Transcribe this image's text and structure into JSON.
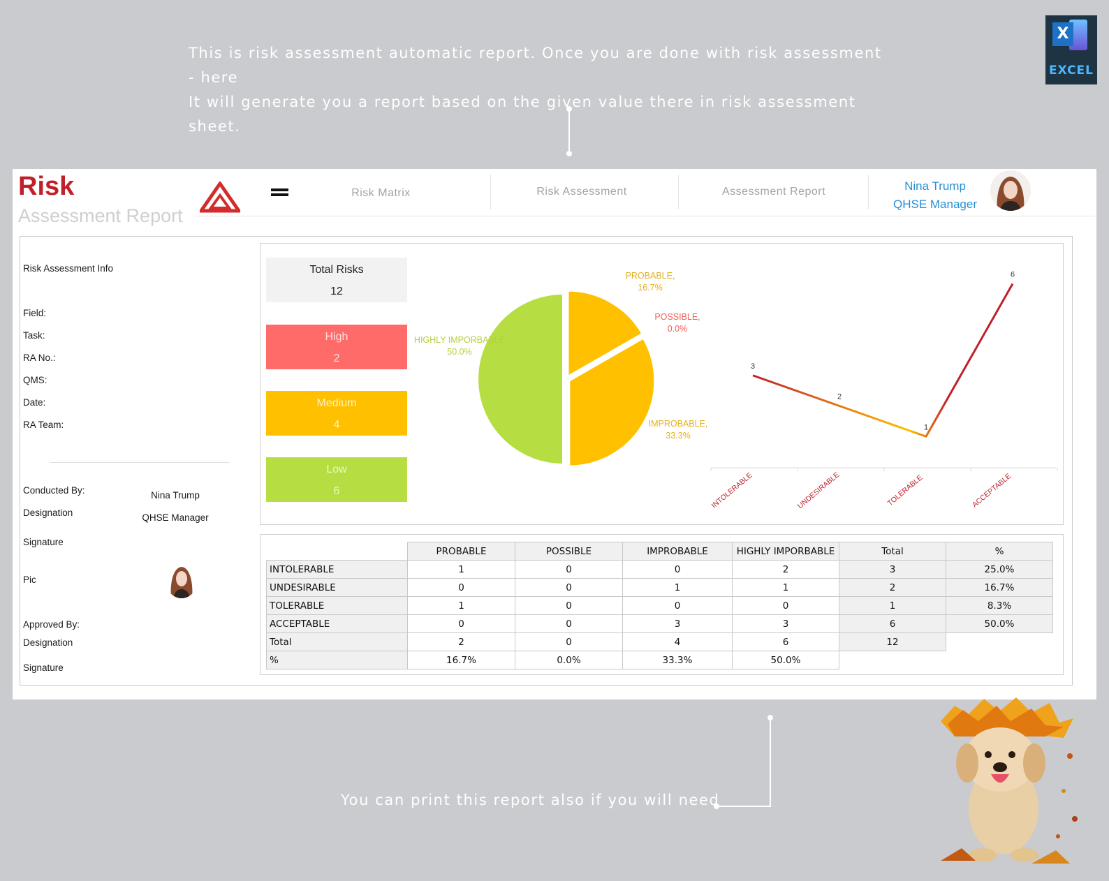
{
  "captions": {
    "top_line1": "This is risk assessment automatic report. Once you are done with risk assessment - here",
    "top_line2": "It will generate you a report based on the given value there in risk assessment sheet.",
    "bottom": "You can print this report also if you will need"
  },
  "excel_badge": {
    "letter": "X",
    "label": "EXCEL",
    "icon": "excel-icon"
  },
  "header": {
    "title": "Risk",
    "subtitle": "Assessment Report",
    "logo_icon": "triangle-logo-icon",
    "menu_icon": "hamburger-menu-icon",
    "nav": [
      "Risk Matrix",
      "Risk Assessment",
      "Assessment Report"
    ],
    "user": {
      "name": "Nina Trump",
      "role": "QHSE Manager"
    }
  },
  "info": {
    "heading": "Risk Assessment Info",
    "fields": [
      "Field:",
      "Task:",
      "RA No.:",
      "QMS:",
      "Date:",
      "RA Team:"
    ],
    "conducted_by_label": "Conducted By:",
    "conducted_by_value": "Nina Trump",
    "designation_label": "Designation",
    "designation_value": "QHSE Manager",
    "signature_label": "Signature",
    "pic_label": "Pic",
    "approved_by_label": "Approved By:",
    "designation2_label": "Designation",
    "signature2_label": "Signature"
  },
  "kpis": {
    "total": {
      "label": "Total Risks",
      "value": "12"
    },
    "high": {
      "label": "High",
      "value": "2"
    },
    "medium": {
      "label": "Medium",
      "value": "4"
    },
    "low": {
      "label": "Low",
      "value": "6"
    }
  },
  "chart_data": [
    {
      "type": "pie",
      "categories": [
        "PROBABLE",
        "POSSIBLE",
        "IMPROBABLE",
        "HIGHLY IMPORBABLE"
      ],
      "values": [
        16.7,
        0.0,
        33.3,
        50.0
      ],
      "labels": [
        "PROBABLE,",
        "POSSIBLE,",
        "IMPROBABLE,",
        "HIGHLY IMPORBABLE"
      ],
      "percent_labels": [
        "16.7%",
        "0.0%",
        "33.3%",
        "50.0%"
      ],
      "colors": [
        "#ffc000",
        "#ff6b69",
        "#ffc000",
        "#b6de43"
      ],
      "label_colors": [
        "#e3b01c",
        "#f0605a",
        "#e3b01c",
        "#b6cf3c"
      ]
    },
    {
      "type": "line",
      "categories": [
        "INTOLERABLE",
        "UNDESIRABLE",
        "TOLERABLE",
        "ACCEPTABLE"
      ],
      "values": [
        3,
        2,
        1,
        6
      ],
      "data_labels": [
        "3",
        "2",
        "1",
        "6"
      ],
      "ylim": [
        0,
        6.4
      ],
      "colors": [
        "#c0202a",
        "#ffc000"
      ]
    }
  ],
  "table": {
    "headers": [
      "",
      "PROBABLE",
      "POSSIBLE",
      "IMPROBABLE",
      "HIGHLY IMPORBABLE",
      "Total",
      "%"
    ],
    "rows": [
      [
        "INTOLERABLE",
        "1",
        "0",
        "0",
        "2",
        "3",
        "25.0%"
      ],
      [
        "UNDESIRABLE",
        "0",
        "0",
        "1",
        "1",
        "2",
        "16.7%"
      ],
      [
        "TOLERABLE",
        "1",
        "0",
        "0",
        "0",
        "1",
        "8.3%"
      ],
      [
        "ACCEPTABLE",
        "0",
        "0",
        "3",
        "3",
        "6",
        "50.0%"
      ],
      [
        "Total",
        "2",
        "0",
        "4",
        "6",
        "12",
        ""
      ],
      [
        "%",
        "16.7%",
        "0.0%",
        "33.3%",
        "50.0%",
        "",
        ""
      ]
    ]
  }
}
